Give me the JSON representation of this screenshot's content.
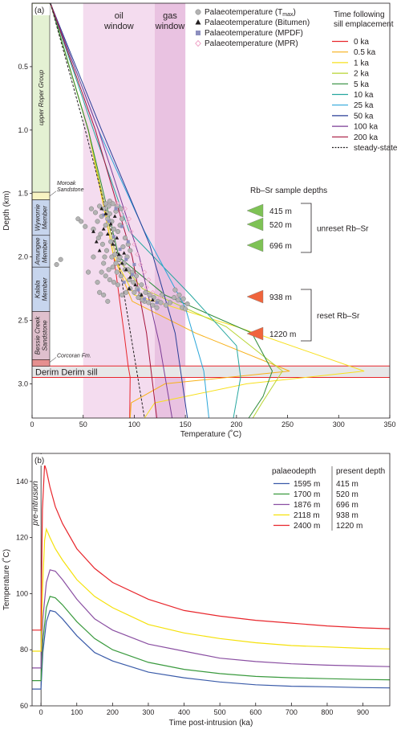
{
  "chart_data": [
    {
      "panel_label": "(a)",
      "type": "line",
      "xlabel": "Temperature (˚C)",
      "ylabel": "Depth (km)",
      "xlim": [
        0,
        350
      ],
      "ylim": [
        3.27,
        0
      ],
      "xticks": [
        0,
        50,
        100,
        150,
        200,
        250,
        300,
        350
      ],
      "yticks": [
        0.5,
        1.0,
        1.5,
        2.0,
        2.5,
        3.0
      ],
      "zones": [
        {
          "label": "oil\nwindow",
          "x0": 50,
          "x1": 120,
          "color": "#f4dcef"
        },
        {
          "label": "gas\nwindow",
          "x0": 120,
          "x1": 150,
          "color": "#e9c2e1"
        }
      ],
      "sill": {
        "label": "Derim Derim sill",
        "top": 2.86,
        "bottom": 2.95,
        "color": "#e7e7e8"
      },
      "strat_column": [
        {
          "name": "upper Roper Group",
          "top": 0,
          "bottom": 1.49,
          "color": "#e4f1d3",
          "show_label": true
        },
        {
          "name": "",
          "top": 1.49,
          "bottom": 1.55,
          "color": "#f8f4c3",
          "show_label": false
        },
        {
          "name": "Wyworrie\nMember",
          "top": 1.55,
          "bottom": 1.83,
          "color": "#c7d5ed",
          "show_label": true
        },
        {
          "name": "Amungee\nMember",
          "top": 1.83,
          "bottom": 2.08,
          "color": "#c7d5ed",
          "show_label": true
        },
        {
          "name": "Kalala\nMember",
          "top": 2.08,
          "bottom": 2.43,
          "color": "#c7d5ed",
          "show_label": true
        },
        {
          "name": "Bessie Creek\nSandstone",
          "top": 2.43,
          "bottom": 2.81,
          "color": "#dfc0cd",
          "show_label": true
        },
        {
          "name": "",
          "top": 2.81,
          "bottom": 2.86,
          "color": "#e58f8f",
          "show_label": false
        }
      ],
      "strat_callouts": [
        {
          "text": "Moroak\nSandstone",
          "depth": 1.52
        },
        {
          "text": "Corcoran Fm.",
          "depth": 2.83
        }
      ],
      "legend_markers": [
        {
          "text": "Palaeotemperature (T",
          "sub": "max",
          "suffix": ")",
          "marker": "circle",
          "color": "#b3b3b3"
        },
        {
          "text": "Palaeotemperature (Bitumen)",
          "marker": "triangle",
          "color": "#231f20"
        },
        {
          "text": "Palaeotemperature (MPDF)",
          "marker": "square",
          "color": "#8d8fbf"
        },
        {
          "text": "Palaeotemperature (MPR)",
          "marker": "diamond",
          "color": "#f0a6c8"
        }
      ],
      "legend_series_title": "Time following\nsill emplacement",
      "series": [
        {
          "name": "0 ka",
          "color": "#e8262c",
          "x": [
            18,
            55,
            80,
            90,
            94,
            96,
            95.5
          ],
          "y": [
            0,
            1.0,
            2.0,
            2.6,
            2.86,
            2.95,
            3.27
          ]
        },
        {
          "name": "0.5 ka",
          "color": "#f7b11a",
          "x": [
            18,
            55,
            80,
            98,
            160,
            252,
            130,
            97,
            96
          ],
          "y": [
            0,
            1.0,
            2.0,
            2.35,
            2.6,
            2.9,
            3.0,
            3.15,
            3.27
          ]
        },
        {
          "name": "1 ka",
          "color": "#f7e01e",
          "x": [
            18,
            55,
            80,
            100,
            200,
            325,
            210,
            120,
            110
          ],
          "y": [
            0,
            1.0,
            2.0,
            2.3,
            2.55,
            2.9,
            3.0,
            3.15,
            3.27
          ]
        },
        {
          "name": "2 ka",
          "color": "#b7d431",
          "x": [
            18,
            55,
            82,
            108,
            190,
            245,
            225,
            216
          ],
          "y": [
            0,
            1.0,
            2.0,
            2.25,
            2.55,
            2.9,
            3.15,
            3.27
          ]
        },
        {
          "name": "5 ka",
          "color": "#2e8b3a",
          "x": [
            18,
            55,
            85,
            130,
            215,
            235,
            226,
            212
          ],
          "y": [
            0,
            1.0,
            2.0,
            2.3,
            2.6,
            2.9,
            3.1,
            3.27
          ]
        },
        {
          "name": "10 ka",
          "color": "#26a7a0",
          "x": [
            18,
            60,
            95,
            155,
            200,
            204,
            197
          ],
          "y": [
            0,
            1.0,
            1.8,
            2.3,
            2.7,
            2.95,
            3.27
          ]
        },
        {
          "name": "25 ka",
          "color": "#2aa6d9",
          "x": [
            18,
            65,
            110,
            150,
            168,
            173
          ],
          "y": [
            0,
            1.0,
            1.8,
            2.4,
            2.9,
            3.27
          ]
        },
        {
          "name": "50 ka",
          "color": "#2a3f97",
          "x": [
            18,
            68,
            115,
            140,
            152
          ],
          "y": [
            0,
            1.0,
            1.9,
            2.6,
            3.27
          ]
        },
        {
          "name": "100 ka",
          "color": "#7c3c96",
          "x": [
            18,
            65,
            105,
            125,
            137
          ],
          "y": [
            0,
            1.0,
            2.0,
            2.7,
            3.27
          ]
        },
        {
          "name": "200 ka",
          "color": "#a6143c",
          "x": [
            18,
            62,
            98,
            112,
            122
          ],
          "y": [
            0,
            1.0,
            2.0,
            2.6,
            3.27
          ]
        },
        {
          "name": "steady-state",
          "color": "#231f20",
          "dashed": true,
          "x": [
            18,
            52,
            84,
            110
          ],
          "y": [
            0,
            1.0,
            2.0,
            3.27
          ]
        }
      ],
      "sample_depths": {
        "title": "Rb–Sr sample depths",
        "items": [
          {
            "label": "415 m",
            "color": "#7ec255"
          },
          {
            "label": "520 m",
            "color": "#7ec255"
          },
          {
            "label": "696 m",
            "color": "#7ec255"
          },
          {
            "label": "938 m",
            "color": "#f0643c"
          },
          {
            "label": "1220 m",
            "color": "#f0643c"
          }
        ],
        "groups": [
          {
            "label": "unreset Rb–Sr",
            "from": 0,
            "to": 2
          },
          {
            "label": "reset Rb–Sr",
            "from": 3,
            "to": 4
          }
        ]
      },
      "points_tmax": [
        [
          62,
          1.65
        ],
        [
          66,
          1.6
        ],
        [
          68,
          1.68
        ],
        [
          70,
          1.62
        ],
        [
          72,
          1.75
        ],
        [
          74,
          1.7
        ],
        [
          76,
          1.66
        ],
        [
          78,
          1.72
        ],
        [
          80,
          1.78
        ],
        [
          82,
          1.64
        ],
        [
          84,
          1.8
        ],
        [
          86,
          1.75
        ],
        [
          88,
          1.7
        ],
        [
          65,
          1.85
        ],
        [
          69,
          1.9
        ],
        [
          73,
          1.95
        ],
        [
          77,
          1.88
        ],
        [
          81,
          1.98
        ],
        [
          85,
          2.02
        ],
        [
          89,
          1.92
        ],
        [
          93,
          2.0
        ],
        [
          96,
          1.95
        ],
        [
          70,
          2.05
        ],
        [
          75,
          2.1
        ],
        [
          79,
          2.08
        ],
        [
          83,
          2.12
        ],
        [
          87,
          2.15
        ],
        [
          91,
          2.1
        ],
        [
          95,
          2.18
        ],
        [
          99,
          2.2
        ],
        [
          103,
          2.25
        ],
        [
          107,
          2.22
        ],
        [
          111,
          2.28
        ],
        [
          115,
          2.3
        ],
        [
          119,
          2.32
        ],
        [
          123,
          2.35
        ],
        [
          127,
          2.3
        ],
        [
          131,
          2.38
        ],
        [
          135,
          2.36
        ],
        [
          139,
          2.32
        ],
        [
          143,
          2.34
        ],
        [
          147,
          2.4
        ],
        [
          72,
          1.58
        ],
        [
          76,
          1.56
        ],
        [
          64,
          1.72
        ],
        [
          60,
          1.78
        ],
        [
          58,
          1.62
        ],
        [
          67,
          1.82
        ],
        [
          71,
          2.0
        ],
        [
          75,
          1.6
        ],
        [
          79,
          1.58
        ],
        [
          83,
          1.6
        ],
        [
          87,
          1.62
        ],
        [
          91,
          1.85
        ],
        [
          94,
          1.9
        ],
        [
          78,
          2.0
        ],
        [
          82,
          2.05
        ],
        [
          86,
          2.0
        ],
        [
          90,
          2.05
        ],
        [
          94,
          2.1
        ],
        [
          98,
          2.12
        ],
        [
          102,
          2.15
        ],
        [
          106,
          2.3
        ],
        [
          110,
          2.35
        ],
        [
          114,
          2.36
        ],
        [
          118,
          2.38
        ],
        [
          122,
          2.4
        ],
        [
          126,
          2.36
        ],
        [
          100,
          2.28
        ],
        [
          104,
          2.32
        ],
        [
          108,
          2.34
        ],
        [
          96,
          2.25
        ],
        [
          92,
          2.28
        ],
        [
          88,
          2.3
        ],
        [
          84,
          2.22
        ],
        [
          80,
          2.2
        ],
        [
          76,
          2.18
        ],
        [
          72,
          2.15
        ],
        [
          68,
          2.12
        ],
        [
          64,
          2.2
        ],
        [
          140,
          2.26
        ],
        [
          144,
          2.3
        ],
        [
          148,
          2.33
        ],
        [
          152,
          2.37
        ],
        [
          150,
          2.41
        ],
        [
          45,
          1.7
        ],
        [
          48,
          1.72
        ],
        [
          52,
          1.76
        ],
        [
          24,
          2.06
        ],
        [
          28,
          2.02
        ],
        [
          55,
          2.12
        ],
        [
          60,
          2.0
        ],
        [
          66,
          2.28
        ],
        [
          70,
          2.3
        ],
        [
          74,
          2.35
        ]
      ],
      "points_bitumen": [
        [
          68,
          1.62
        ],
        [
          72,
          1.66
        ],
        [
          77,
          1.74
        ],
        [
          81,
          1.68
        ],
        [
          74,
          1.82
        ],
        [
          79,
          1.9
        ],
        [
          66,
          1.95
        ],
        [
          85,
          1.98
        ],
        [
          88,
          2.05
        ],
        [
          92,
          2.1
        ],
        [
          96,
          2.16
        ],
        [
          101,
          2.22
        ],
        [
          107,
          2.3
        ],
        [
          118,
          2.34
        ],
        [
          60,
          1.8
        ],
        [
          63,
          1.88
        ],
        [
          70,
          1.78
        ],
        [
          83,
          1.85
        ],
        [
          90,
          1.97
        ],
        [
          95,
          2.25
        ]
      ],
      "points_mpdf": [
        [
          75,
          1.72
        ],
        [
          80,
          1.84
        ],
        [
          86,
          1.94
        ],
        [
          92,
          2.02
        ],
        [
          98,
          2.14
        ],
        [
          104,
          2.26
        ],
        [
          110,
          2.33
        ],
        [
          70,
          1.67
        ],
        [
          82,
          1.62
        ],
        [
          88,
          1.76
        ],
        [
          94,
          1.88
        ],
        [
          100,
          2.06
        ],
        [
          122,
          2.36
        ],
        [
          90,
          2.2
        ]
      ],
      "points_mpr": [
        [
          84,
          1.58
        ],
        [
          88,
          1.66
        ],
        [
          93,
          1.73
        ],
        [
          97,
          1.8
        ],
        [
          100,
          1.9
        ],
        [
          103,
          1.98
        ],
        [
          106,
          2.06
        ],
        [
          110,
          2.12
        ],
        [
          114,
          2.18
        ],
        [
          91,
          1.62
        ],
        [
          95,
          1.7
        ],
        [
          112,
          2.24
        ],
        [
          118,
          2.28
        ],
        [
          125,
          2.32
        ]
      ]
    },
    {
      "panel_label": "(b)",
      "type": "line",
      "xlabel": "Time post-intrusion (ka)",
      "ylabel": "Temperature (˚C)",
      "xlim": [
        -25,
        975
      ],
      "ylim": [
        60,
        150
      ],
      "xticks": [
        0,
        100,
        200,
        300,
        400,
        500,
        600,
        700,
        800,
        900
      ],
      "yticks": [
        60,
        80,
        100,
        120,
        140
      ],
      "annotation": "pre-intrusion",
      "legend_headers": [
        "palaeodepth",
        "present depth"
      ],
      "series": [
        {
          "name": "1595 m",
          "present_depth": "415 m",
          "color": "#3a5ba9",
          "x": [
            -25,
            0,
            5,
            15,
            25,
            40,
            60,
            100,
            150,
            200,
            300,
            400,
            500,
            600,
            700,
            800,
            900,
            975
          ],
          "y": [
            66,
            66,
            79,
            90,
            94,
            93.5,
            91,
            85,
            79,
            76,
            72,
            70,
            68.5,
            67.5,
            67,
            66.8,
            66.5,
            66.4
          ]
        },
        {
          "name": "1700 m",
          "present_depth": "520 m",
          "color": "#3a9a3e",
          "x": [
            -25,
            0,
            5,
            15,
            25,
            40,
            60,
            100,
            150,
            200,
            300,
            400,
            500,
            600,
            700,
            800,
            900,
            975
          ],
          "y": [
            69,
            69,
            83,
            95,
            99,
            98.5,
            96,
            90,
            84,
            80,
            75.5,
            73,
            71.5,
            70.5,
            70,
            69.7,
            69.4,
            69.3
          ]
        },
        {
          "name": "1876 m",
          "present_depth": "696 m",
          "color": "#8a4fa2",
          "x": [
            -25,
            0,
            5,
            15,
            25,
            40,
            60,
            100,
            150,
            200,
            300,
            400,
            500,
            600,
            700,
            800,
            900,
            975
          ],
          "y": [
            73.5,
            73.5,
            91,
            104,
            108.5,
            108,
            105,
            98,
            91,
            87,
            82,
            79.5,
            77,
            75.8,
            75,
            74.5,
            74.2,
            74
          ]
        },
        {
          "name": "2118 m",
          "present_depth": "938 m",
          "color": "#f5e10a",
          "x": [
            -25,
            0,
            5,
            10,
            15,
            25,
            40,
            60,
            100,
            150,
            200,
            300,
            400,
            500,
            600,
            700,
            800,
            900,
            975
          ],
          "y": [
            79.5,
            79.5,
            104,
            119,
            123,
            120,
            116,
            112,
            105,
            99,
            95,
            89,
            86,
            84,
            82.5,
            81.5,
            81,
            80.5,
            80.3
          ]
        },
        {
          "name": "2400 m",
          "present_depth": "1220 m",
          "color": "#e8262c",
          "x": [
            -25,
            0,
            4,
            10,
            15,
            25,
            40,
            60,
            100,
            150,
            200,
            300,
            400,
            500,
            600,
            700,
            800,
            900,
            975
          ],
          "y": [
            87,
            87,
            130,
            146,
            144,
            138,
            131,
            125,
            116,
            109,
            104,
            98,
            94,
            92,
            90.5,
            89.5,
            88.5,
            87.8,
            87.5
          ]
        }
      ]
    }
  ]
}
